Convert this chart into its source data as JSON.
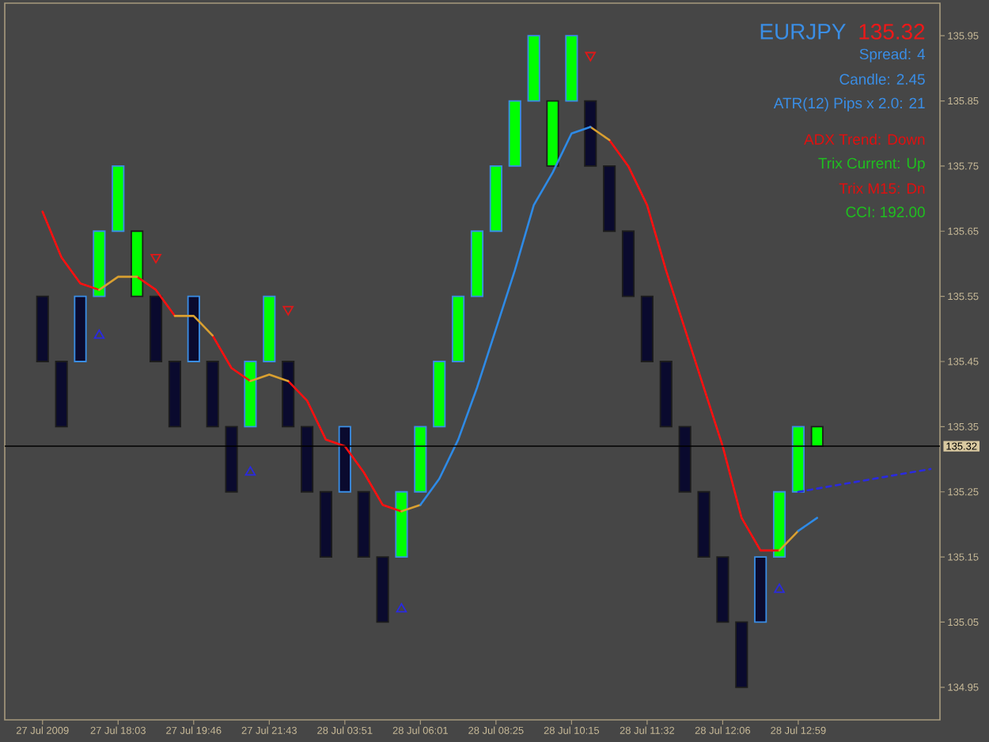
{
  "chart_data": {
    "type": "bar",
    "categories": [
      "27 Jul 2009",
      null,
      null,
      null,
      "27 Jul 18:03",
      null,
      null,
      null,
      "27 Jul 19:46",
      null,
      null,
      null,
      "27 Jul 21:43",
      null,
      null,
      null,
      "28 Jul 03:51",
      null,
      null,
      null,
      "28 Jul 06:01",
      null,
      null,
      null,
      "28 Jul 08:25",
      null,
      null,
      null,
      "28 Jul 10:15",
      null,
      null,
      null,
      "28 Jul 11:32",
      null,
      null,
      null,
      "28 Jul 12:06",
      null,
      null,
      null,
      "28 Jul 12:59",
      null,
      null,
      null,
      null,
      null,
      null,
      null
    ],
    "series": [
      {
        "axis": "y2",
        "base": [
          135.55,
          135.45,
          135.45,
          135.55,
          135.65,
          135.65,
          135.55,
          135.45,
          135.45,
          135.45,
          135.35,
          135.35,
          135.45,
          135.45,
          135.35,
          135.25,
          135.25,
          135.25,
          135.15,
          135.15,
          135.25,
          135.35,
          135.45,
          135.55,
          135.65,
          135.75,
          135.85,
          135.85,
          135.85,
          135.85,
          135.75,
          135.65,
          135.55,
          135.45,
          135.35,
          135.25,
          135.15,
          135.05,
          135.05,
          135.15,
          135.25,
          135.35,
          null,
          null,
          null,
          null,
          null,
          null
        ],
        "values": [
          -0.1,
          -0.1,
          0.1,
          0.1,
          0.1,
          -0.1,
          -0.1,
          -0.1,
          0.1,
          -0.1,
          -0.1,
          0.1,
          0.1,
          -0.1,
          -0.1,
          -0.1,
          0.1,
          -0.1,
          -0.1,
          0.1,
          0.1,
          0.1,
          0.1,
          0.1,
          0.1,
          0.1,
          0.1,
          -0.1,
          0.1,
          -0.1,
          -0.1,
          -0.1,
          -0.1,
          -0.1,
          -0.1,
          -0.1,
          -0.1,
          -0.1,
          0.1,
          0.1,
          0.1,
          -0.03,
          null,
          null,
          null,
          null,
          null,
          null
        ],
        "colors": [
          "#0a0a2e",
          "#0a0a2e",
          "#0a0a2e",
          "#00ff00",
          "#00ff00",
          "#00ff00",
          "#0a0a2e",
          "#0a0a2e",
          "#0a0a2e",
          "#0a0a2e",
          "#0a0a2e",
          "#00ff00",
          "#00ff00",
          "#0a0a2e",
          "#0a0a2e",
          "#0a0a2e",
          "#0a0a2e",
          "#0a0a2e",
          "#0a0a2e",
          "#00ff00",
          "#00ff00",
          "#00ff00",
          "#00ff00",
          "#00ff00",
          "#00ff00",
          "#00ff00",
          "#00ff00",
          "#00ff00",
          "#00ff00",
          "#0a0a2e",
          "#0a0a2e",
          "#0a0a2e",
          "#0a0a2e",
          "#0a0a2e",
          "#0a0a2e",
          "#0a0a2e",
          "#0a0a2e",
          "#0a0a2e",
          "#0a0a2e",
          "#00ff00",
          "#00ff00",
          "#00ff00",
          null,
          null,
          null,
          null,
          null,
          null
        ]
      },
      {
        "type": "line",
        "axis": "y2",
        "color": "#ff1010",
        "line_style": "solid",
        "values": [
          135.68,
          135.61,
          135.57,
          135.56,
          null,
          135.58,
          135.56,
          135.52,
          null,
          135.49,
          135.44,
          135.42,
          null,
          135.42,
          135.39,
          135.33,
          135.32,
          135.28,
          135.23,
          135.22,
          null,
          null,
          null,
          null,
          null,
          null,
          null,
          null,
          null,
          null,
          135.79,
          135.75,
          135.69,
          135.59,
          135.5,
          135.41,
          135.32,
          135.21,
          135.16,
          135.16,
          null,
          null,
          null,
          null,
          null,
          null,
          null,
          null
        ]
      },
      {
        "type": "line",
        "axis": "y2",
        "color": "#daa030",
        "line_style": "solid",
        "values": [
          null,
          null,
          null,
          135.56,
          135.58,
          135.58,
          null,
          135.52,
          135.52,
          135.49,
          null,
          135.42,
          135.43,
          135.42,
          null,
          null,
          null,
          null,
          null,
          135.22,
          135.23,
          null,
          null,
          null,
          null,
          null,
          null,
          null,
          null,
          135.81,
          135.79,
          null,
          null,
          null,
          null,
          null,
          null,
          null,
          null,
          135.16,
          135.19,
          null,
          null,
          null,
          null,
          null,
          null,
          null
        ]
      },
      {
        "type": "line",
        "axis": "y2",
        "color": "#2e8ae6",
        "line_style": "solid",
        "values": [
          null,
          null,
          null,
          null,
          null,
          null,
          null,
          null,
          null,
          null,
          null,
          null,
          null,
          null,
          null,
          null,
          null,
          null,
          null,
          null,
          135.23,
          135.27,
          135.33,
          135.41,
          135.5,
          135.59,
          135.69,
          135.74,
          135.8,
          135.81,
          null,
          null,
          null,
          null,
          null,
          null,
          null,
          null,
          null,
          null,
          135.19,
          135.21,
          null,
          null,
          null,
          null,
          null,
          null
        ]
      },
      {
        "type": "line",
        "axis": "y2",
        "color": "#2a2ae0",
        "line_style": "dashed",
        "values": [
          null,
          null,
          null,
          null,
          null,
          null,
          null,
          null,
          null,
          null,
          null,
          null,
          null,
          null,
          null,
          null,
          null,
          null,
          null,
          null,
          null,
          null,
          null,
          null,
          null,
          null,
          null,
          null,
          null,
          null,
          null,
          null,
          null,
          null,
          null,
          null,
          null,
          null,
          null,
          null,
          135.25,
          135.255,
          135.26,
          135.265,
          135.27,
          135.275,
          135.28,
          135.285
        ]
      },
      {
        "type": "scatter",
        "axis": "y2",
        "color": "#2a2ae0",
        "marker": "triangle",
        "values": [
          null,
          null,
          null,
          135.49,
          null,
          null,
          null,
          null,
          null,
          null,
          null,
          135.28,
          null,
          null,
          null,
          null,
          null,
          null,
          null,
          135.07,
          null,
          null,
          null,
          null,
          null,
          null,
          null,
          null,
          null,
          null,
          null,
          null,
          null,
          null,
          null,
          null,
          null,
          null,
          null,
          135.1,
          null,
          null,
          null,
          null,
          null,
          null,
          null,
          null
        ]
      },
      {
        "type": "scatter",
        "axis": "y2",
        "color": "#e01818",
        "marker": "triangle down",
        "values": [
          null,
          null,
          null,
          null,
          null,
          null,
          135.61,
          null,
          null,
          null,
          null,
          null,
          null,
          135.53,
          null,
          null,
          null,
          null,
          null,
          null,
          null,
          null,
          null,
          null,
          null,
          null,
          null,
          null,
          null,
          135.92,
          null,
          null,
          null,
          null,
          null,
          null,
          null,
          null,
          null,
          null,
          null,
          null,
          null,
          null,
          null,
          null,
          null,
          null
        ]
      }
    ],
    "y2lim": [
      134.9,
      136.0
    ],
    "y2ticks": [
      134.95,
      135.05,
      135.15,
      135.25,
      135.35,
      135.45,
      135.55,
      135.65,
      135.75,
      135.85,
      135.95
    ],
    "ref_lines": [
      {
        "axis": "y2",
        "value": 135.32,
        "label": "135.32",
        "color": "#000000"
      }
    ],
    "annotations": [
      "EURJPY",
      "135.32",
      "Spread: 4",
      "Candle: 2.45",
      "ATR(12) Pips x 2.0: 21",
      "ADX Trend: Down",
      "Trix Current: Up",
      "Trix M15: Dn",
      "CCI: 192.00"
    ]
  }
}
